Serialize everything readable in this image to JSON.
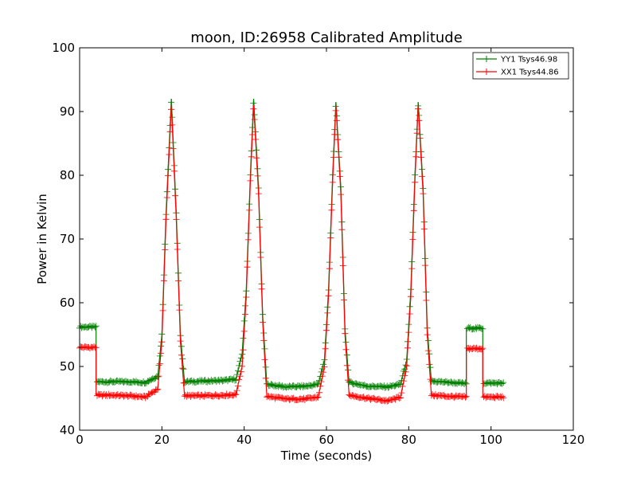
{
  "chart_data": {
    "type": "line",
    "title": "moon, ID:26958 Calibrated Amplitude",
    "xlabel": "Time (seconds)",
    "ylabel": "Power in Kelvin",
    "xlim": [
      0,
      120
    ],
    "ylim": [
      40,
      100
    ],
    "xticks": [
      0,
      20,
      40,
      60,
      80,
      100,
      120
    ],
    "yticks": [
      40,
      50,
      60,
      70,
      80,
      90,
      100
    ],
    "grid": false,
    "legend_position": "top-right",
    "marker": "plus",
    "series": [
      {
        "name": "YY1 Tsys46.98",
        "color": "#008000",
        "x": [
          0,
          4,
          4,
          8,
          12,
          16,
          19,
          20,
          21,
          22.3,
          23.5,
          24.5,
          25.5,
          30,
          35,
          38,
          39.5,
          40.5,
          41.5,
          42.3,
          43.5,
          44.5,
          45.5,
          50,
          55,
          58,
          59.5,
          60.5,
          61.5,
          62.3,
          63.5,
          64.5,
          65.5,
          70,
          75,
          78,
          79.5,
          80.5,
          81.5,
          82.3,
          83.5,
          84.5,
          85.5,
          90,
          94,
          94,
          98,
          98,
          103
        ],
        "values": [
          56.2,
          56.2,
          47.6,
          47.6,
          47.6,
          47.5,
          48.5,
          55,
          74,
          92,
          74,
          55,
          47.6,
          47.7,
          47.8,
          48,
          52,
          62,
          80,
          92,
          78,
          58,
          47.2,
          46.8,
          46.9,
          47.2,
          51,
          62,
          80,
          91.5,
          78,
          56,
          47.5,
          46.9,
          46.8,
          47.2,
          51,
          62,
          80,
          91.5,
          78,
          56,
          47.7,
          47.5,
          47.3,
          56,
          56,
          47.4,
          47.4
        ]
      },
      {
        "name": "XX1 Tsys44.86",
        "color": "#ff0000",
        "x": [
          0,
          4,
          4,
          8,
          12,
          16,
          19,
          20,
          21,
          22.3,
          23.5,
          24.5,
          25.5,
          30,
          35,
          38,
          39.5,
          40.5,
          41.5,
          42.3,
          43.5,
          44.5,
          45.5,
          50,
          55,
          58,
          59.5,
          60.5,
          61.5,
          62.3,
          63.5,
          64.5,
          65.5,
          70,
          75,
          78,
          79.5,
          80.5,
          81.5,
          82.3,
          83.5,
          84.5,
          85.5,
          90,
          94,
          94,
          98,
          98,
          103
        ],
        "values": [
          53,
          53,
          45.5,
          45.5,
          45.4,
          45.2,
          46.5,
          54,
          73,
          91,
          73,
          54,
          45.4,
          45.4,
          45.5,
          45.6,
          50,
          61,
          79,
          91,
          77,
          57,
          45.3,
          44.9,
          44.9,
          45.2,
          50,
          61,
          79,
          91,
          77,
          55,
          45.5,
          45,
          44.6,
          45.2,
          50,
          61,
          79,
          91,
          77,
          55,
          45.5,
          45.3,
          45.2,
          52.8,
          52.8,
          45.2,
          45.2
        ]
      }
    ]
  }
}
